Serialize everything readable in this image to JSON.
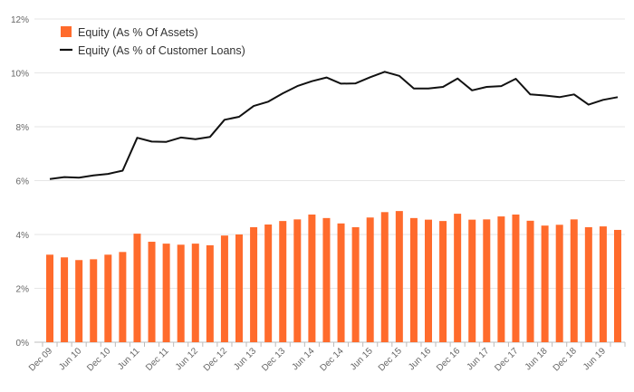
{
  "chart_data": {
    "type": "bar+line",
    "title": "",
    "xlabel": "",
    "ylabel": "",
    "ylim": [
      0,
      12
    ],
    "y_ticks": [
      0,
      2,
      4,
      6,
      8,
      10,
      12
    ],
    "y_tick_labels": [
      "0%",
      "2%",
      "4%",
      "6%",
      "8%",
      "10%",
      "12%"
    ],
    "y_unit": "%",
    "grid": true,
    "legend_position": "top-left",
    "categories": [
      "Dec 09",
      "Mar 10",
      "Jun 10",
      "Sep 10",
      "Dec 10",
      "Mar 11",
      "Jun 11",
      "Sep 11",
      "Dec 11",
      "Mar 12",
      "Jun 12",
      "Sep 12",
      "Dec 12",
      "Mar 13",
      "Jun 13",
      "Sep 13",
      "Dec 13",
      "Mar 14",
      "Jun 14",
      "Sep 14",
      "Dec 14",
      "Mar 15",
      "Jun 15",
      "Sep 15",
      "Dec 15",
      "Mar 16",
      "Jun 16",
      "Sep 16",
      "Dec 16",
      "Mar 17",
      "Jun 17",
      "Sep 17",
      "Dec 17",
      "Mar 18",
      "Jun 18",
      "Sep 18",
      "Dec 18",
      "Mar 19",
      "Jun 19",
      "Sep 19"
    ],
    "x_tick_labels": [
      "Dec 09",
      "Jun 10",
      "Dec 10",
      "Jun 11",
      "Dec 11",
      "Jun 12",
      "Dec 12",
      "Jun 13",
      "Dec 13",
      "Jun 14",
      "Dec 14",
      "Jun 15",
      "Dec 15",
      "Jun 16",
      "Dec 16",
      "Jun 17",
      "Dec 17",
      "Jun 18",
      "Dec 18",
      "Jun 19"
    ],
    "series": [
      {
        "name": "Equity (As % Of Assets)",
        "type": "bar",
        "color": "#ff6b2c",
        "values": [
          3.25,
          3.15,
          3.05,
          3.08,
          3.25,
          3.35,
          4.03,
          3.73,
          3.66,
          3.62,
          3.66,
          3.6,
          3.96,
          4.0,
          4.27,
          4.37,
          4.5,
          4.56,
          4.74,
          4.61,
          4.41,
          4.27,
          4.63,
          4.83,
          4.87,
          4.61,
          4.55,
          4.5,
          4.77,
          4.55,
          4.56,
          4.67,
          4.74,
          4.51,
          4.33,
          4.36,
          4.56,
          4.27,
          4.3,
          4.17
        ]
      },
      {
        "name": "Equity (As % of Customer Loans)",
        "type": "line",
        "color": "#111111",
        "values": [
          6.06,
          6.13,
          6.11,
          6.19,
          6.25,
          6.37,
          7.59,
          7.45,
          7.44,
          7.6,
          7.54,
          7.62,
          8.26,
          8.37,
          8.77,
          8.93,
          9.24,
          9.51,
          9.69,
          9.83,
          9.6,
          9.61,
          9.84,
          10.04,
          9.89,
          9.42,
          9.42,
          9.48,
          9.79,
          9.35,
          9.48,
          9.51,
          9.78,
          9.2,
          9.16,
          9.1,
          9.2,
          8.82,
          9.0,
          9.1
        ]
      }
    ]
  }
}
